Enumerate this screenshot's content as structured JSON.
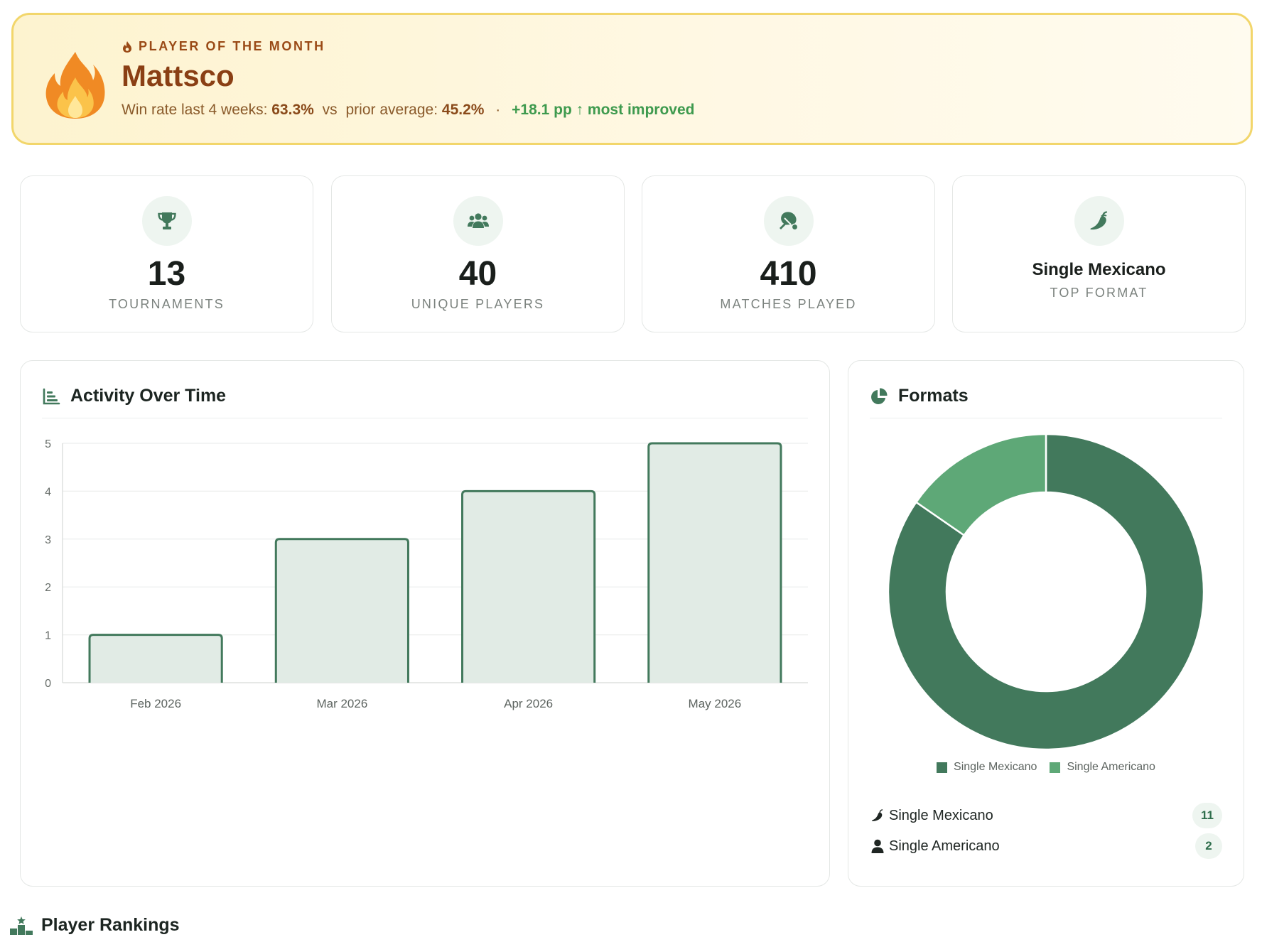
{
  "player_of_month": {
    "eyebrow": "PLAYER OF THE MONTH",
    "name": "Mattsco",
    "win_rate_label": "Win rate last 4 weeks:",
    "win_rate_value": "63.3%",
    "vs_label": "vs",
    "prior_label": "prior average:",
    "prior_value": "45.2%",
    "separator": "·",
    "improvement": "+18.1 pp ↑ most improved",
    "icon": "fire-icon"
  },
  "kpis": [
    {
      "icon": "trophy-icon",
      "value": "13",
      "label": "TOURNAMENTS"
    },
    {
      "icon": "users-icon",
      "value": "40",
      "label": "UNIQUE PLAYERS"
    },
    {
      "icon": "paddle-ball-icon",
      "value": "410",
      "label": "MATCHES PLAYED"
    },
    {
      "icon": "pepper-icon",
      "value": "Single Mexicano",
      "label": "TOP FORMAT"
    }
  ],
  "activity": {
    "title": "Activity Over Time",
    "icon": "bar-chart-icon"
  },
  "formats": {
    "title": "Formats",
    "icon": "pie-chart-icon",
    "list": [
      {
        "icon": "pepper-icon",
        "name": "Single Mexicano",
        "count": "11"
      },
      {
        "icon": "user-icon",
        "name": "Single Americano",
        "count": "2"
      }
    ]
  },
  "rankings": {
    "title": "Player Rankings",
    "icon": "podium-icon"
  },
  "colors": {
    "accent_dark": "#42795c",
    "accent_light": "#5ea877",
    "bar_fill": "#e1ebe5"
  },
  "chart_data": [
    {
      "type": "bar",
      "categories": [
        "Feb 2026",
        "Mar 2026",
        "Apr 2026",
        "May 2026"
      ],
      "values": [
        1,
        3,
        4,
        5
      ],
      "ylim": [
        0,
        5
      ],
      "yticks": [
        0,
        1,
        2,
        3,
        4,
        5
      ],
      "grid": true
    },
    {
      "type": "pie",
      "donut": true,
      "labels": [
        "Single Mexicano",
        "Single Americano"
      ],
      "values": [
        11,
        2
      ],
      "colors": [
        "#42795c",
        "#5ea877"
      ],
      "legend": "bottom"
    }
  ]
}
